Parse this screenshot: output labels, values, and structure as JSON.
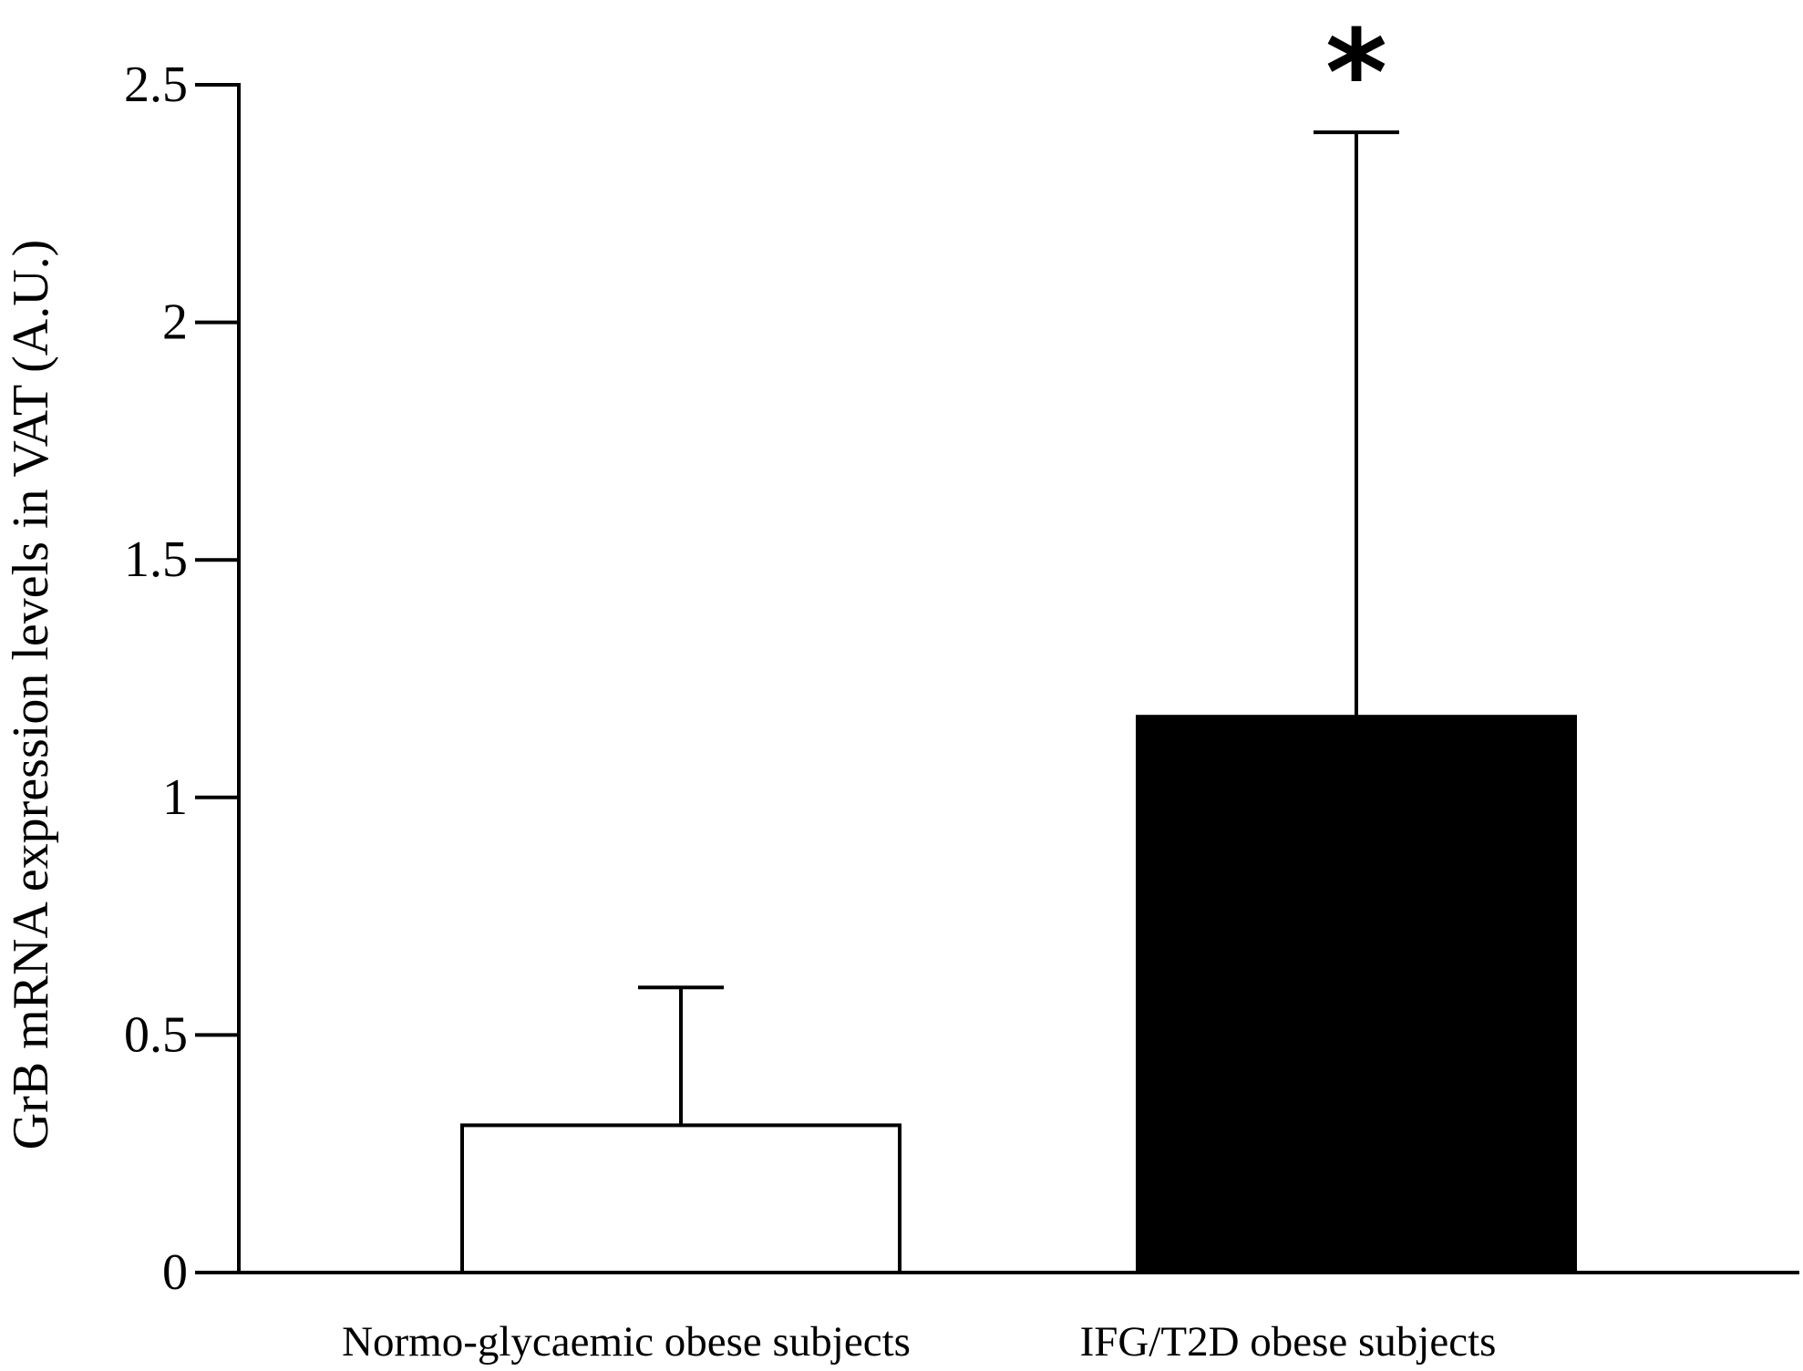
{
  "chart_data": {
    "type": "bar",
    "title": "",
    "xlabel": "",
    "ylabel": "GrB mRNA expression levels in VAT (A.U.)",
    "ylim": [
      0,
      2.5
    ],
    "yticks": [
      "0",
      "0.5",
      "1",
      "1.5",
      "2",
      "2.5"
    ],
    "categories": [
      "Normo-glycaemic obese subjects",
      "IFG/T2D obese subjects"
    ],
    "values": [
      0.31,
      1.17
    ],
    "error_upper": [
      0.6,
      2.4
    ],
    "bar_fill": [
      "#ffffff",
      "#000000"
    ],
    "annotations": [
      {
        "category": "IFG/T2D obese subjects",
        "text": "*"
      }
    ],
    "grid": false,
    "legend": "none"
  }
}
